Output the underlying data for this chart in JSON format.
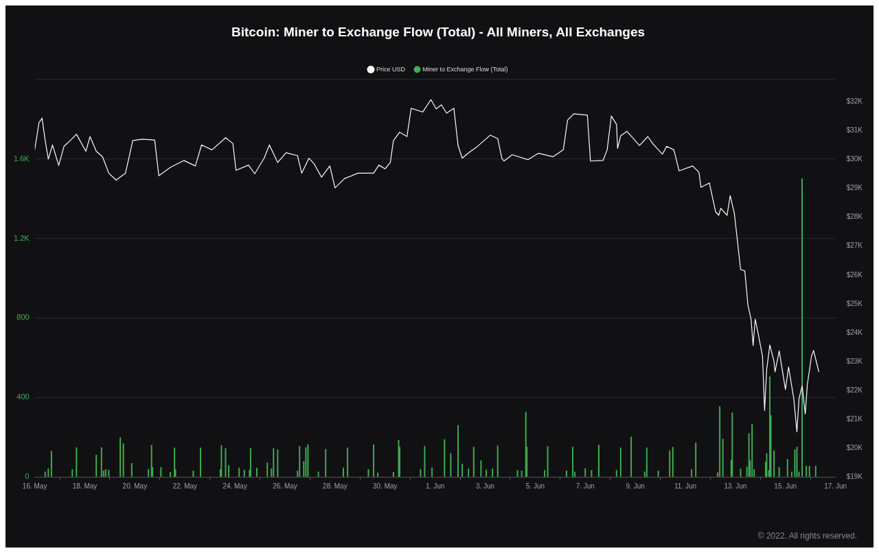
{
  "chart_data": {
    "type": "bar",
    "title": "Bitcoin: Miner to Exchange Flow (Total) - All Miners, All Exchanges",
    "legend": "top",
    "grid": "y",
    "marker": "none",
    "line_style": "solid",
    "xlim": [
      "2022-05-16",
      "2022-06-17"
    ],
    "xticks": [
      {
        "value": "2022-05-16",
        "label": "16. May"
      },
      {
        "value": "2022-05-18",
        "label": "18. May"
      },
      {
        "value": "2022-05-20",
        "label": "20. May"
      },
      {
        "value": "2022-05-22",
        "label": "22. May"
      },
      {
        "value": "2022-05-24",
        "label": "24. May"
      },
      {
        "value": "2022-05-26",
        "label": "26. May"
      },
      {
        "value": "2022-05-28",
        "label": "28. May"
      },
      {
        "value": "2022-05-30",
        "label": "30. May"
      },
      {
        "value": "2022-06-01",
        "label": "1. Jun"
      },
      {
        "value": "2022-06-03",
        "label": "3. Jun"
      },
      {
        "value": "2022-06-05",
        "label": "5. Jun"
      },
      {
        "value": "2022-06-07",
        "label": "7. Jun"
      },
      {
        "value": "2022-06-09",
        "label": "9. Jun"
      },
      {
        "value": "2022-06-11",
        "label": "11. Jun"
      },
      {
        "value": "2022-06-13",
        "label": "13. Jun"
      },
      {
        "value": "2022-06-15",
        "label": "15. Jun"
      },
      {
        "value": "2022-06-17",
        "label": "17. Jun"
      }
    ],
    "ylim": [
      0,
      2000
    ],
    "yticks": [
      0,
      400,
      800,
      {
        "value": 1200,
        "label": "1.2K"
      },
      {
        "value": 1600,
        "label": "1.6K"
      },
      {
        "value": 2000,
        "label": null
      }
    ],
    "y2lim": [
      19000,
      32780
    ],
    "y2ticks": [
      {
        "value": 19000,
        "label": "$19K"
      },
      {
        "value": 20000,
        "label": "$20K"
      },
      {
        "value": 21000,
        "label": "$21K"
      },
      {
        "value": 22000,
        "label": "$22K"
      },
      {
        "value": 23000,
        "label": "$23K"
      },
      {
        "value": 24000,
        "label": "$24K"
      },
      {
        "value": 25000,
        "label": "$25K"
      },
      {
        "value": 26000,
        "label": "$26K"
      },
      {
        "value": 27000,
        "label": "$27K"
      },
      {
        "value": 28000,
        "label": "$28K"
      },
      {
        "value": 29000,
        "label": "$29K"
      },
      {
        "value": 30000,
        "label": "$30K"
      },
      {
        "value": 31000,
        "label": "$31K"
      },
      {
        "value": 32000,
        "label": "$32K"
      }
    ],
    "annotations": [
      "© 2022. All rights reserved."
    ],
    "series": [
      {
        "name": "Price USD",
        "type": "line",
        "axis": "y2",
        "color": "#ffffff",
        "x": [
          "2022-05-16T00:00",
          "2022-05-16T04:00",
          "2022-05-16T07:00",
          "2022-05-16T10:00",
          "2022-05-16T13:00",
          "2022-05-16T17:00",
          "2022-05-16T23:00",
          "2022-05-17T04:00",
          "2022-05-17T10:00",
          "2022-05-17T16:00",
          "2022-05-18T01:00",
          "2022-05-18T05:00",
          "2022-05-18T11:00",
          "2022-05-18T17:00",
          "2022-05-18T23:00",
          "2022-05-19T06:00",
          "2022-05-19T15:00",
          "2022-05-19T22:00",
          "2022-05-20T07:00",
          "2022-05-20T19:00",
          "2022-05-20T23:00",
          "2022-05-21T10:00",
          "2022-05-21T23:00",
          "2022-05-22T10:00",
          "2022-05-22T16:00",
          "2022-05-23T02:00",
          "2022-05-23T15:00",
          "2022-05-23T22:00",
          "2022-05-24T01:00",
          "2022-05-24T13:00",
          "2022-05-24T19:00",
          "2022-05-25T04:00",
          "2022-05-25T09:00",
          "2022-05-25T17:00",
          "2022-05-26T01:00",
          "2022-05-26T12:00",
          "2022-05-26T16:00",
          "2022-05-26T23:00",
          "2022-05-27T04:00",
          "2022-05-27T11:00",
          "2022-05-27T19:00",
          "2022-05-28T00:00",
          "2022-05-28T09:00",
          "2022-05-28T22:00",
          "2022-05-29T13:00",
          "2022-05-29T18:00",
          "2022-05-30T00:00",
          "2022-05-30T05:00",
          "2022-05-30T08:00",
          "2022-05-30T14:00",
          "2022-05-30T21:00",
          "2022-05-31T01:00",
          "2022-05-31T12:00",
          "2022-05-31T20:00",
          "2022-06-01T01:00",
          "2022-06-01T06:00",
          "2022-06-01T11:00",
          "2022-06-01T18:00",
          "2022-06-01T22:00",
          "2022-06-02T02:00",
          "2022-06-02T10:00",
          "2022-06-02T16:00",
          "2022-06-03T05:00",
          "2022-06-03T12:00",
          "2022-06-03T16:00",
          "2022-06-03T18:00",
          "2022-06-04T02:00",
          "2022-06-04T17:00",
          "2022-06-05T03:00",
          "2022-06-05T17:00",
          "2022-06-06T03:00",
          "2022-06-06T07:00",
          "2022-06-06T13:00",
          "2022-06-07T02:00",
          "2022-06-07T05:00",
          "2022-06-07T17:00",
          "2022-06-07T21:00",
          "2022-06-08T01:00",
          "2022-06-08T06:00",
          "2022-06-08T07:00",
          "2022-06-08T10:00",
          "2022-06-08T16:00",
          "2022-06-09T04:00",
          "2022-06-09T12:00",
          "2022-06-09T17:00",
          "2022-06-10T02:00",
          "2022-06-10T06:00",
          "2022-06-10T13:00",
          "2022-06-10T18:00",
          "2022-06-11T07:00",
          "2022-06-11T13:00",
          "2022-06-11T15:00",
          "2022-06-11T23:00",
          "2022-06-12T05:00",
          "2022-06-12T08:00",
          "2022-06-12T10:00",
          "2022-06-12T16:00",
          "2022-06-12T19:00",
          "2022-06-12T23:00",
          "2022-06-13T05:00",
          "2022-06-13T09:00",
          "2022-06-13T12:00",
          "2022-06-13T15:00",
          "2022-06-13T17:00",
          "2022-06-13T19:00",
          "2022-06-13T22:00",
          "2022-06-14T02:00",
          "2022-06-14T04:00",
          "2022-06-14T06:00",
          "2022-06-14T09:00",
          "2022-06-14T13:00",
          "2022-06-14T14:00",
          "2022-06-14T18:00",
          "2022-06-15T00:00",
          "2022-06-15T03:00",
          "2022-06-15T08:00",
          "2022-06-15T11:00",
          "2022-06-15T13:00",
          "2022-06-15T16:00",
          "2022-06-15T19:00",
          "2022-06-15T21:00",
          "2022-06-16T01:00",
          "2022-06-16T03:00",
          "2022-06-16T08:00"
        ],
        "values": [
          30350,
          31270,
          31440,
          30660,
          30020,
          30510,
          29800,
          30460,
          30660,
          30880,
          30290,
          30800,
          30290,
          30100,
          29530,
          29290,
          29530,
          30660,
          30710,
          30680,
          29440,
          29730,
          29970,
          29780,
          30510,
          30340,
          30760,
          30560,
          29630,
          29810,
          29510,
          30050,
          30510,
          29900,
          30240,
          30140,
          29530,
          30050,
          29850,
          29390,
          29780,
          29020,
          29340,
          29530,
          29530,
          29810,
          29680,
          29900,
          30660,
          30950,
          30800,
          31780,
          31650,
          32080,
          31760,
          31900,
          31610,
          31780,
          30490,
          30050,
          30290,
          30440,
          30850,
          30730,
          30050,
          29950,
          30170,
          30000,
          30220,
          30100,
          30340,
          31370,
          31590,
          31540,
          29950,
          29970,
          30340,
          31510,
          31220,
          30390,
          30830,
          30980,
          30490,
          30800,
          30540,
          30190,
          30460,
          30340,
          29610,
          29780,
          29560,
          29040,
          29190,
          28190,
          28070,
          28310,
          28070,
          28750,
          28140,
          26190,
          26140,
          24960,
          24470,
          23550,
          24470,
          23940,
          23180,
          21300,
          22720,
          23570,
          23010,
          22640,
          23370,
          22030,
          22810,
          21710,
          20560,
          21710,
          22150,
          21180,
          22200,
          23200,
          23380,
          22640
        ]
      },
      {
        "name": "Miner to Exchange Flow (Total)",
        "color": "#3fae4f",
        "x": [
          "2022-05-16T10:00",
          "2022-05-16T13:00",
          "2022-05-16T16:00",
          "2022-05-17T12:00",
          "2022-05-17T16:00",
          "2022-05-18T11:00",
          "2022-05-18T16:00",
          "2022-05-18T18:00",
          "2022-05-18T20:00",
          "2022-05-18T23:00",
          "2022-05-19T10:00",
          "2022-05-19T13:00",
          "2022-05-19T21:00",
          "2022-05-20T13:00",
          "2022-05-20T16:00",
          "2022-05-20T17:00",
          "2022-05-21T01:00",
          "2022-05-21T10:00",
          "2022-05-21T14:00",
          "2022-05-21T15:00",
          "2022-05-22T08:00",
          "2022-05-22T15:00",
          "2022-05-23T10:00",
          "2022-05-23T11:00",
          "2022-05-23T15:00",
          "2022-05-23T18:00",
          "2022-05-24T04:00",
          "2022-05-24T09:00",
          "2022-05-24T14:00",
          "2022-05-24T15:00",
          "2022-05-24T21:00",
          "2022-05-25T07:00",
          "2022-05-25T11:00",
          "2022-05-25T13:00",
          "2022-05-25T17:00",
          "2022-05-26T12:00",
          "2022-05-26T14:00",
          "2022-05-26T18:00",
          "2022-05-26T20:00",
          "2022-05-26T22:00",
          "2022-05-27T08:00",
          "2022-05-27T15:00",
          "2022-05-28T08:00",
          "2022-05-28T12:00",
          "2022-05-29T08:00",
          "2022-05-29T13:00",
          "2022-05-29T17:00",
          "2022-05-30T08:00",
          "2022-05-30T13:00",
          "2022-05-30T14:00",
          "2022-05-31T10:00",
          "2022-05-31T14:00",
          "2022-05-31T21:00",
          "2022-06-01T09:00",
          "2022-06-01T15:00",
          "2022-06-01T22:00",
          "2022-06-02T02:00",
          "2022-06-02T08:00",
          "2022-06-02T13:00",
          "2022-06-02T20:00",
          "2022-06-03T01:00",
          "2022-06-03T07:00",
          "2022-06-03T12:00",
          "2022-06-04T07:00",
          "2022-06-04T11:00",
          "2022-06-04T15:00",
          "2022-06-04T16:00",
          "2022-06-05T09:00",
          "2022-06-05T12:00",
          "2022-06-06T06:00",
          "2022-06-06T12:00",
          "2022-06-06T14:00",
          "2022-06-07T00:00",
          "2022-06-07T06:00",
          "2022-06-07T13:00",
          "2022-06-08T06:00",
          "2022-06-08T10:00",
          "2022-06-08T20:00",
          "2022-06-09T09:00",
          "2022-06-09T11:00",
          "2022-06-09T22:00",
          "2022-06-10T09:00",
          "2022-06-10T12:00",
          "2022-06-11T06:00",
          "2022-06-11T10:00",
          "2022-06-12T07:00",
          "2022-06-12T09:00",
          "2022-06-12T12:00",
          "2022-06-12T20:00",
          "2022-06-12T21:00",
          "2022-06-13T05:00",
          "2022-06-13T11:00",
          "2022-06-13T13:00",
          "2022-06-13T14:00",
          "2022-06-13T16:00",
          "2022-06-13T18:00",
          "2022-06-14T05:00",
          "2022-06-14T06:00",
          "2022-06-14T08:00",
          "2022-06-14T09:00",
          "2022-06-14T10:00",
          "2022-06-14T13:00",
          "2022-06-14T18:00",
          "2022-06-15T02:00",
          "2022-06-15T06:00",
          "2022-06-15T09:00",
          "2022-06-15T11:00",
          "2022-06-15T13:00",
          "2022-06-15T16:00",
          "2022-06-15T20:00",
          "2022-06-15T23:00",
          "2022-06-16T05:00"
        ],
        "values": [
          25,
          41,
          129,
          37,
          147,
          109,
          147,
          30,
          37,
          34,
          197,
          167,
          68,
          38,
          159,
          48,
          48,
          23,
          146,
          38,
          30,
          146,
          38,
          158,
          143,
          57,
          45,
          34,
          34,
          143,
          45,
          71,
          41,
          143,
          136,
          30,
          154,
          78,
          147,
          162,
          25,
          139,
          45,
          146,
          38,
          162,
          20,
          23,
          185,
          150,
          38,
          154,
          46,
          188,
          118,
          259,
          65,
          40,
          150,
          82,
          35,
          40,
          156,
          33,
          30,
          326,
          150,
          33,
          153,
          30,
          150,
          25,
          42,
          33,
          159,
          33,
          146,
          201,
          25,
          146,
          30,
          132,
          149,
          37,
          171,
          21,
          354,
          191,
          85,
          323,
          40,
          50,
          217,
          82,
          265,
          37,
          75,
          118,
          33,
          504,
          309,
          132,
          47,
          89,
          25,
          136,
          150,
          25,
          1501,
          54,
          54,
          54
        ]
      }
    ]
  }
}
